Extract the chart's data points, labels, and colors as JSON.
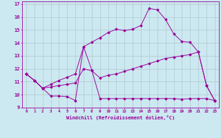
{
  "xlabel": "Windchill (Refroidissement éolien,°C)",
  "background_color": "#cce8f0",
  "line_color": "#990099",
  "grid_color": "#b0c8d0",
  "xlim": [
    -0.5,
    23.5
  ],
  "ylim": [
    9,
    17.2
  ],
  "yticks": [
    9,
    10,
    11,
    12,
    13,
    14,
    15,
    16,
    17
  ],
  "xticks": [
    0,
    1,
    2,
    3,
    4,
    5,
    6,
    7,
    8,
    9,
    10,
    11,
    12,
    13,
    14,
    15,
    16,
    17,
    18,
    19,
    20,
    21,
    22,
    23
  ],
  "line1_x": [
    0,
    1,
    2,
    3,
    4,
    5,
    6,
    7,
    8,
    9,
    10,
    11,
    12,
    13,
    14,
    15,
    16,
    17,
    18,
    19,
    20,
    21,
    22,
    23
  ],
  "line1_y": [
    11.6,
    11.1,
    10.5,
    9.9,
    9.9,
    9.85,
    9.55,
    13.7,
    11.9,
    9.7,
    9.7,
    9.7,
    9.7,
    9.7,
    9.7,
    9.7,
    9.7,
    9.7,
    9.7,
    9.65,
    9.7,
    9.7,
    9.7,
    9.55
  ],
  "line2_x": [
    0,
    1,
    2,
    3,
    4,
    5,
    6,
    7,
    8,
    9,
    10,
    11,
    12,
    13,
    14,
    15,
    16,
    17,
    18,
    19,
    20,
    21,
    22,
    23
  ],
  "line2_y": [
    11.6,
    11.1,
    10.5,
    10.6,
    10.7,
    10.8,
    10.9,
    12.0,
    11.85,
    11.3,
    11.5,
    11.6,
    11.8,
    12.0,
    12.2,
    12.4,
    12.6,
    12.8,
    12.9,
    13.0,
    13.1,
    13.3,
    10.7,
    9.55
  ],
  "line3_x": [
    0,
    1,
    2,
    3,
    4,
    5,
    6,
    7,
    8,
    9,
    10,
    11,
    12,
    13,
    14,
    15,
    16,
    17,
    18,
    19,
    20,
    21,
    22,
    23
  ],
  "line3_y": [
    11.6,
    11.1,
    10.5,
    10.8,
    11.1,
    11.35,
    11.6,
    13.7,
    14.05,
    14.4,
    14.8,
    15.05,
    14.95,
    15.05,
    15.35,
    16.65,
    16.55,
    15.8,
    14.7,
    14.1,
    14.05,
    13.3,
    10.7,
    9.55
  ]
}
